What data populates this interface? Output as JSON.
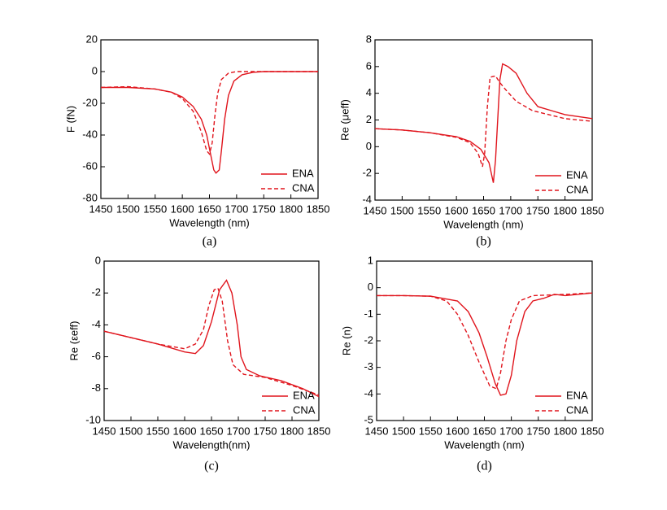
{
  "chart_data": [
    {
      "type": "line",
      "caption": "(a)",
      "xlabel": "Wavelength (nm)",
      "ylabel": "F (fN)",
      "xlim": [
        1450,
        1850
      ],
      "xticks": [
        1450,
        1500,
        1550,
        1600,
        1650,
        1700,
        1750,
        1800,
        1850
      ],
      "ylim": [
        -80,
        20
      ],
      "yticks": [
        -80,
        -60,
        -40,
        -20,
        0,
        20
      ],
      "legend": "lower right",
      "series": [
        {
          "name": "ENA",
          "color": "#e0141c",
          "style": "solid",
          "x": [
            1450,
            1500,
            1550,
            1580,
            1600,
            1620,
            1635,
            1645,
            1652,
            1658,
            1662,
            1668,
            1672,
            1678,
            1685,
            1695,
            1710,
            1730,
            1750,
            1800,
            1850
          ],
          "values": [
            -10,
            -10,
            -11,
            -13,
            -16,
            -22,
            -30,
            -40,
            -52,
            -62,
            -64,
            -62,
            -50,
            -30,
            -15,
            -6,
            -2,
            -0.5,
            0,
            0,
            0
          ]
        },
        {
          "name": "CNA",
          "color": "#e0141c",
          "style": "dashed",
          "x": [
            1450,
            1500,
            1550,
            1580,
            1600,
            1620,
            1635,
            1645,
            1650,
            1655,
            1660,
            1665,
            1672,
            1685,
            1700,
            1750,
            1850
          ],
          "values": [
            -10,
            -9.5,
            -11,
            -13,
            -17,
            -25,
            -38,
            -50,
            -52,
            -45,
            -28,
            -14,
            -5,
            -1,
            0,
            0,
            0
          ]
        }
      ]
    },
    {
      "type": "line",
      "caption": "(b)",
      "xlabel": "Wavelength (nm)",
      "ylabel": "Re (μeff)",
      "xlim": [
        1450,
        1850
      ],
      "xticks": [
        1450,
        1500,
        1550,
        1600,
        1650,
        1700,
        1750,
        1800,
        1850
      ],
      "ylim": [
        -4,
        8
      ],
      "yticks": [
        -4,
        -2,
        0,
        2,
        4,
        6,
        8
      ],
      "legend": "lower right",
      "series": [
        {
          "name": "ENA",
          "color": "#e0141c",
          "style": "solid",
          "x": [
            1450,
            1500,
            1550,
            1600,
            1625,
            1645,
            1660,
            1668,
            1672,
            1676,
            1680,
            1685,
            1695,
            1710,
            1730,
            1750,
            1775,
            1800,
            1850
          ],
          "values": [
            1.35,
            1.25,
            1.05,
            0.75,
            0.4,
            -0.2,
            -1.2,
            -2.7,
            -1,
            2,
            5,
            6.2,
            6,
            5.5,
            4,
            3,
            2.7,
            2.4,
            2.1
          ]
        },
        {
          "name": "CNA",
          "color": "#e0141c",
          "style": "dashed",
          "x": [
            1450,
            1500,
            1550,
            1600,
            1625,
            1640,
            1648,
            1652,
            1657,
            1662,
            1672,
            1680,
            1690,
            1710,
            1740,
            1800,
            1850
          ],
          "values": [
            1.35,
            1.25,
            1.05,
            0.7,
            0.3,
            -0.5,
            -1.5,
            -0.5,
            3,
            5.2,
            5.3,
            4.8,
            4.3,
            3.4,
            2.7,
            2.1,
            1.9
          ]
        }
      ]
    },
    {
      "type": "line",
      "caption": "(c)",
      "xlabel": "Wavelength(nm)",
      "ylabel": "Re (εeff)",
      "xlim": [
        1450,
        1850
      ],
      "xticks": [
        1450,
        1500,
        1550,
        1600,
        1650,
        1700,
        1750,
        1800,
        1850
      ],
      "ylim": [
        -10,
        0
      ],
      "yticks": [
        -10,
        -8,
        -6,
        -4,
        -2,
        0
      ],
      "legend": "lower right",
      "series": [
        {
          "name": "ENA",
          "color": "#e0141c",
          "style": "solid",
          "x": [
            1450,
            1500,
            1550,
            1600,
            1620,
            1635,
            1650,
            1665,
            1678,
            1688,
            1698,
            1705,
            1715,
            1740,
            1780,
            1820,
            1850
          ],
          "values": [
            -4.4,
            -4.8,
            -5.2,
            -5.7,
            -5.8,
            -5.3,
            -3.8,
            -1.8,
            -1.2,
            -2,
            -4,
            -6,
            -6.8,
            -7.2,
            -7.5,
            -8,
            -8.5
          ]
        },
        {
          "name": "CNA",
          "color": "#e0141c",
          "style": "dashed",
          "x": [
            1450,
            1500,
            1550,
            1600,
            1620,
            1635,
            1645,
            1655,
            1662,
            1670,
            1680,
            1690,
            1710,
            1750,
            1800,
            1850
          ],
          "values": [
            -4.4,
            -4.8,
            -5.2,
            -5.5,
            -5.2,
            -4.3,
            -2.8,
            -1.8,
            -1.7,
            -2.5,
            -5,
            -6.5,
            -7.1,
            -7.3,
            -7.8,
            -8.4
          ]
        }
      ]
    },
    {
      "type": "line",
      "caption": "(d)",
      "xlabel": "Wavelength (nm)",
      "ylabel": "Re (n)",
      "xlim": [
        1450,
        1850
      ],
      "xticks": [
        1450,
        1500,
        1550,
        1600,
        1650,
        1700,
        1750,
        1800,
        1850
      ],
      "ylim": [
        -5,
        1
      ],
      "yticks": [
        -5,
        -4,
        -3,
        -2,
        -1,
        0,
        1
      ],
      "legend": "lower right",
      "series": [
        {
          "name": "ENA",
          "color": "#e0141c",
          "style": "solid",
          "x": [
            1450,
            1500,
            1550,
            1600,
            1620,
            1640,
            1655,
            1670,
            1680,
            1690,
            1700,
            1710,
            1725,
            1740,
            1760,
            1780,
            1800,
            1850
          ],
          "values": [
            -0.3,
            -0.3,
            -0.32,
            -0.5,
            -0.9,
            -1.7,
            -2.6,
            -3.6,
            -4.05,
            -4,
            -3.3,
            -2,
            -0.9,
            -0.5,
            -0.4,
            -0.25,
            -0.3,
            -0.2
          ]
        },
        {
          "name": "CNA",
          "color": "#e0141c",
          "style": "dashed",
          "x": [
            1450,
            1500,
            1550,
            1580,
            1600,
            1620,
            1640,
            1660,
            1672,
            1680,
            1690,
            1700,
            1715,
            1740,
            1800,
            1850
          ],
          "values": [
            -0.3,
            -0.3,
            -0.32,
            -0.5,
            -1,
            -1.8,
            -2.8,
            -3.7,
            -3.8,
            -3.2,
            -2,
            -1.2,
            -0.5,
            -0.3,
            -0.25,
            -0.2
          ]
        }
      ]
    }
  ]
}
